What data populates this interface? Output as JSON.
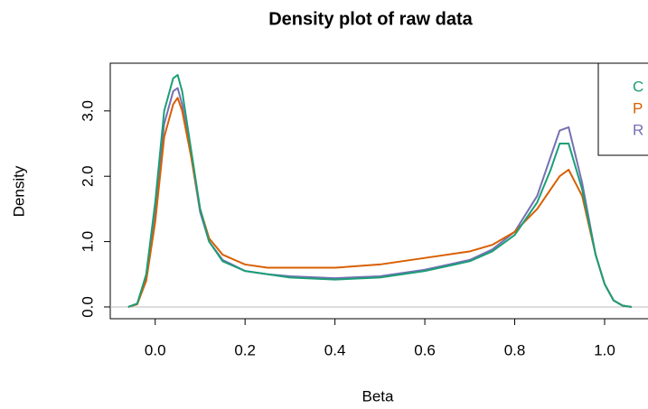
{
  "chart_data": {
    "type": "line",
    "title": "Density plot of raw data",
    "x_label": "Beta",
    "y_label": "Density",
    "xlim": [
      -0.1,
      1.1
    ],
    "ylim": [
      -0.18,
      3.73
    ],
    "xticks": [
      {
        "value": 0,
        "label": "0.0"
      },
      0.2,
      0.4,
      0.6,
      0.8,
      {
        "value": 1,
        "label": "1.0"
      }
    ],
    "yticks": [
      {
        "value": 0,
        "label": "0.0"
      },
      {
        "value": 1,
        "label": "1.0"
      },
      {
        "value": 2,
        "label": "2.0"
      },
      {
        "value": 3,
        "label": "3.0"
      }
    ],
    "x": [
      -0.06,
      -0.04,
      -0.02,
      0,
      0.02,
      0.04,
      0.05,
      0.06,
      0.08,
      0.1,
      0.12,
      0.15,
      0.2,
      0.25,
      0.3,
      0.4,
      0.5,
      0.6,
      0.7,
      0.75,
      0.8,
      0.85,
      0.88,
      0.9,
      0.92,
      0.95,
      0.98,
      1.0,
      1.02,
      1.04,
      1.06
    ],
    "series": [
      {
        "name": "C",
        "color": "#1b9e77",
        "values": [
          0,
          0.05,
          0.5,
          1.6,
          3.0,
          3.5,
          3.55,
          3.3,
          2.4,
          1.5,
          1.0,
          0.7,
          0.55,
          0.5,
          0.45,
          0.42,
          0.45,
          0.55,
          0.7,
          0.85,
          1.1,
          1.6,
          2.1,
          2.5,
          2.5,
          1.8,
          0.8,
          0.35,
          0.1,
          0.02,
          0
        ]
      },
      {
        "name": "P",
        "color": "#d95f02",
        "values": [
          0,
          0.04,
          0.4,
          1.3,
          2.6,
          3.1,
          3.2,
          3.0,
          2.3,
          1.5,
          1.05,
          0.8,
          0.65,
          0.6,
          0.6,
          0.6,
          0.65,
          0.75,
          0.85,
          0.95,
          1.15,
          1.5,
          1.8,
          2.0,
          2.1,
          1.7,
          0.8,
          0.35,
          0.1,
          0.02,
          0
        ]
      },
      {
        "name": "R",
        "color": "#7570b3",
        "values": [
          0,
          0.05,
          0.45,
          1.5,
          2.8,
          3.3,
          3.35,
          3.1,
          2.3,
          1.45,
          1.0,
          0.72,
          0.55,
          0.5,
          0.47,
          0.44,
          0.47,
          0.57,
          0.72,
          0.88,
          1.15,
          1.7,
          2.3,
          2.7,
          2.75,
          1.9,
          0.8,
          0.35,
          0.1,
          0.02,
          0
        ]
      }
    ]
  }
}
